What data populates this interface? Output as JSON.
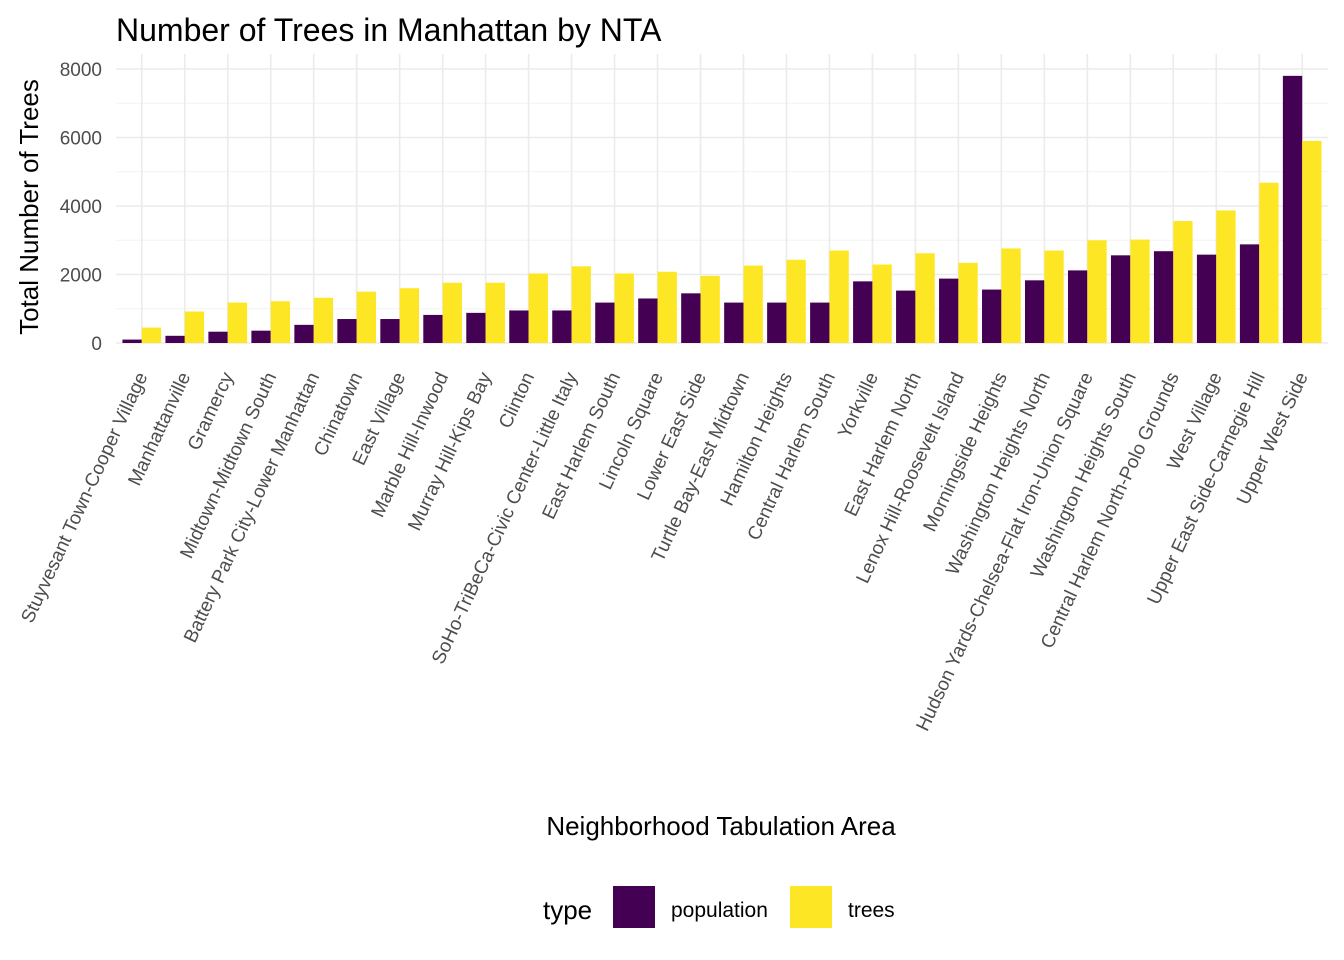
{
  "chart_data": {
    "type": "bar",
    "title": "Number of Trees in Manhattan by NTA",
    "xlabel": "Neighborhood Tabulation Area",
    "ylabel": "Total Number of Trees",
    "ylim": [
      0,
      8000
    ],
    "yticks": [
      0,
      2000,
      4000,
      6000,
      8000
    ],
    "grid": true,
    "legend": {
      "title": "type",
      "placement": "bottom"
    },
    "categories": [
      "Stuyvesant Town-Cooper Village",
      "Manhattanville",
      "Gramercy",
      "Midtown-Midtown South",
      "Battery Park City-Lower Manhattan",
      "Chinatown",
      "East Village",
      "Marble Hill-Inwood",
      "Murray Hill-Kips Bay",
      "Clinton",
      "SoHo-TriBeCa-Civic Center-Little Italy",
      "East Harlem South",
      "Lincoln Square",
      "Lower East Side",
      "Turtle Bay-East Midtown",
      "Hamilton Heights",
      "Central Harlem South",
      "Yorkville",
      "East Harlem North",
      "Lenox Hill-Roosevelt Island",
      "Morningside Heights",
      "Washington Heights North",
      "Hudson Yards-Chelsea-Flat Iron-Union Square",
      "Washington Heights South",
      "Central Harlem North-Polo Grounds",
      "West Village",
      "Upper East Side-Carnegie Hill",
      "Upper West Side"
    ],
    "series": [
      {
        "name": "population",
        "color": "#440154",
        "values": [
          100,
          210,
          330,
          360,
          530,
          700,
          700,
          820,
          880,
          950,
          950,
          1180,
          1300,
          1450,
          1180,
          1180,
          1180,
          1800,
          1530,
          1880,
          1560,
          1830,
          2120,
          2560,
          2680,
          2580,
          2880,
          7800
        ]
      },
      {
        "name": "trees",
        "color": "#fde725",
        "values": [
          450,
          920,
          1180,
          1220,
          1320,
          1500,
          1600,
          1760,
          1760,
          2030,
          2240,
          2030,
          2080,
          1960,
          2260,
          2430,
          2700,
          2290,
          2620,
          2340,
          2760,
          2700,
          3000,
          3020,
          3560,
          3870,
          4680,
          5900
        ]
      }
    ]
  }
}
